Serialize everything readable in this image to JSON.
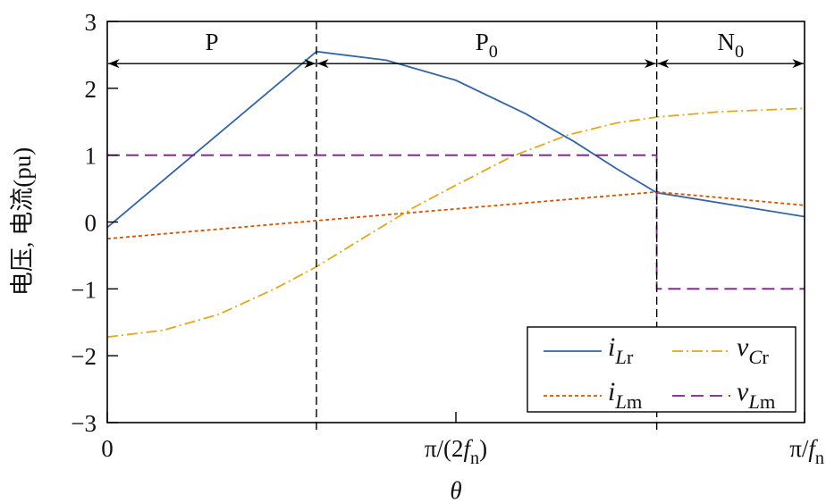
{
  "chart_data": {
    "type": "line",
    "ylabel": "电压, 电流(pu)",
    "xlabel": "θ",
    "ylim": [
      -3,
      3
    ],
    "yticks": [
      -3,
      -2,
      -1,
      0,
      1,
      2,
      3
    ],
    "xlim": [
      0,
      1
    ],
    "xticks": [
      {
        "value": 0,
        "parts": [
          {
            "t": "0"
          }
        ]
      },
      {
        "value": 0.5,
        "parts": [
          {
            "t": "π/(2"
          },
          {
            "t": "f",
            "i": true
          },
          {
            "t": "n",
            "sub": true
          },
          {
            "t": ")"
          }
        ]
      },
      {
        "value": 1,
        "parts": [
          {
            "t": "π/"
          },
          {
            "t": "f",
            "i": true
          },
          {
            "t": "n",
            "sub": true
          }
        ]
      }
    ],
    "grid": false,
    "legend_placement": "bottom-right",
    "intervals": [
      {
        "label": "P",
        "sub": "",
        "from": 0,
        "to": 0.3
      },
      {
        "label": "P",
        "sub": "0",
        "from": 0.3,
        "to": 0.788
      },
      {
        "label": "N",
        "sub": "0",
        "from": 0.788,
        "to": 1
      }
    ],
    "boundaries": [
      0.3,
      0.788
    ],
    "series": [
      {
        "name": "iLr",
        "parts": [
          {
            "t": "i",
            "i": true
          },
          {
            "t": "L",
            "i": true,
            "sub": true
          },
          {
            "t": "r",
            "sub": true
          }
        ],
        "color": "#3465a4",
        "dash": "",
        "x": [
          0,
          0.3,
          0.4,
          0.5,
          0.6,
          0.67,
          0.73,
          0.788,
          1
        ],
        "y": [
          -0.08,
          2.55,
          2.42,
          2.12,
          1.62,
          1.2,
          0.8,
          0.44,
          0.08
        ]
      },
      {
        "name": "iLm",
        "parts": [
          {
            "t": "i",
            "i": true
          },
          {
            "t": "L",
            "i": true,
            "sub": true
          },
          {
            "t": "m",
            "sub": true
          }
        ],
        "color": "#d35400",
        "dash": "4,3",
        "x": [
          0,
          0.3,
          0.788,
          1
        ],
        "y": [
          -0.25,
          0.02,
          0.45,
          0.25
        ]
      },
      {
        "name": "vCr",
        "parts": [
          {
            "t": "v",
            "i": true
          },
          {
            "t": "C",
            "i": true,
            "sub": true
          },
          {
            "t": "r",
            "sub": true
          }
        ],
        "color": "#e0a81c",
        "dash": "12,4,2,4",
        "x": [
          0,
          0.08,
          0.16,
          0.24,
          0.3,
          0.37,
          0.44,
          0.5,
          0.58,
          0.66,
          0.73,
          0.788,
          0.88,
          1
        ],
        "y": [
          -1.72,
          -1.62,
          -1.38,
          -1.0,
          -0.67,
          -0.22,
          0.22,
          0.55,
          0.98,
          1.3,
          1.48,
          1.57,
          1.65,
          1.7
        ]
      },
      {
        "name": "vLm",
        "parts": [
          {
            "t": "v",
            "i": true
          },
          {
            "t": "L",
            "i": true,
            "sub": true
          },
          {
            "t": "m",
            "sub": true
          }
        ],
        "color": "#7b1f8a",
        "dash": "14,7",
        "x": [
          0,
          0.788,
          0.788,
          1
        ],
        "y": [
          1,
          1,
          -1,
          -1
        ]
      }
    ]
  }
}
